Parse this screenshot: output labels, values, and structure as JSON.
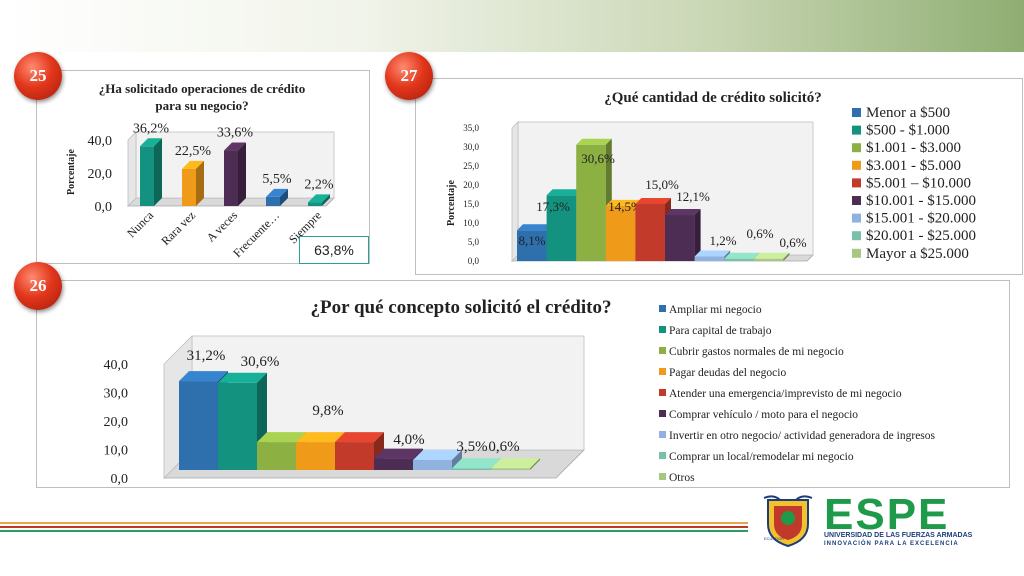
{
  "slide": {
    "badges": [
      "25",
      "27",
      "26"
    ],
    "highlight_value": "63,8%"
  },
  "colors": {
    "blue": "#2e6fae",
    "teal": "#13937f",
    "green": "#8db043",
    "orange": "#ef9b19",
    "red": "#c23a2a",
    "purple": "#4e2d55",
    "lightblue": "#8fb2df",
    "mint": "#79c0a9",
    "lightgreen": "#a9c783",
    "badge": "#e2371c"
  },
  "logo": {
    "name": "ESPE",
    "line1": "UNIVERSIDAD DE LAS FUERZAS ARMADAS",
    "line2": "INNOVACIÓN PARA LA EXCELENCIA",
    "shield_text": "ECUADOR"
  },
  "chart_data": [
    {
      "type": "bar",
      "title": "¿Ha solicitado operaciones de crédito para su negocio?",
      "title_lines": [
        "¿Ha solicitado operaciones de crédito",
        "para su negocio?"
      ],
      "ylabel": "Porcentaje",
      "categories": [
        "Nunca",
        "Rara vez",
        "A veces",
        "Frecuente…",
        "Siempre"
      ],
      "values": [
        36.2,
        22.5,
        33.6,
        5.5,
        2.2
      ],
      "data_labels": [
        "36,2%",
        "22,5%",
        "33,6%",
        "5,5%",
        "2,2%"
      ],
      "colors": [
        "#13937f",
        "#ef9b19",
        "#4e2d55",
        "#2e6fae",
        "#13937f"
      ],
      "yticks": [
        "0,0",
        "20,0",
        "40,0"
      ],
      "ylim": [
        0,
        40
      ]
    },
    {
      "type": "bar",
      "title": "¿Qué cantidad de crédito solicitó?",
      "ylabel": "Porcentaje",
      "series": [
        {
          "name": "Menor a $500",
          "value": 8.1,
          "label": "8,1%",
          "color": "#2e6fae"
        },
        {
          "name": "$500 - $1.000",
          "value": 17.3,
          "label": "17,3%",
          "color": "#13937f"
        },
        {
          "name": "$1.001 - $3.000",
          "value": 30.6,
          "label": "30,6%",
          "color": "#8db043"
        },
        {
          "name": "$3.001 - $5.000",
          "value": 14.5,
          "label": "14,5%",
          "color": "#ef9b19"
        },
        {
          "name": "$5.001 – $10.000",
          "value": 15.0,
          "label": "15,0%",
          "color": "#c23a2a"
        },
        {
          "name": "$10.001 - $15.000",
          "value": 12.1,
          "label": "12,1%",
          "color": "#4e2d55"
        },
        {
          "name": "$15.001 - $20.000",
          "value": 1.2,
          "label": "1,2%",
          "color": "#8fb2df"
        },
        {
          "name": "$20.001 - $25.000",
          "value": 0.6,
          "label": "0,6%",
          "color": "#79c0a9"
        },
        {
          "name": "Mayor a $25.000",
          "value": 0.6,
          "label": "0,6%",
          "color": "#a9c783"
        }
      ],
      "yticks": [
        "0,0",
        "5,0",
        "10,0",
        "15,0",
        "20,0",
        "25,0",
        "30,0",
        "35,0"
      ],
      "ylim": [
        0,
        35
      ],
      "legend_position": "right"
    },
    {
      "type": "bar",
      "title": "¿Por qué concepto solicitó el crédito?",
      "series": [
        {
          "name": "Ampliar mi negocio",
          "value": 31.2,
          "label": "31,2%",
          "color": "#2e6fae"
        },
        {
          "name": "Para capital de trabajo",
          "value": 30.6,
          "label": "30,6%",
          "color": "#13937f"
        },
        {
          "name": "Cubrir gastos normales de mi negocio",
          "value": 9.8,
          "label": "9,8%",
          "color": "#8db043"
        },
        {
          "name": "Pagar deudas del negocio",
          "value": 9.8,
          "label": "",
          "color": "#ef9b19"
        },
        {
          "name": "Atender una emergencia/imprevisto de mi negocio",
          "value": 9.8,
          "label": "",
          "color": "#c23a2a"
        },
        {
          "name": "Comprar vehículo / moto para el negocio",
          "value": 4.0,
          "label": "4,0%",
          "color": "#4e2d55"
        },
        {
          "name": "Invertir en otro negocio/ actividad generadora de ingresos",
          "value": 3.5,
          "label": "3,5%",
          "color": "#8fb2df"
        },
        {
          "name": "Comprar un local/remodelar mi negocio",
          "value": 0.6,
          "label": "0,6%",
          "color": "#79c0a9"
        },
        {
          "name": "Otros",
          "value": 0.6,
          "label": "",
          "color": "#a9c783"
        }
      ],
      "yticks": [
        "0,0",
        "10,0",
        "20,0",
        "30,0",
        "40,0"
      ],
      "ylim": [
        0,
        40
      ],
      "legend_position": "right"
    }
  ]
}
